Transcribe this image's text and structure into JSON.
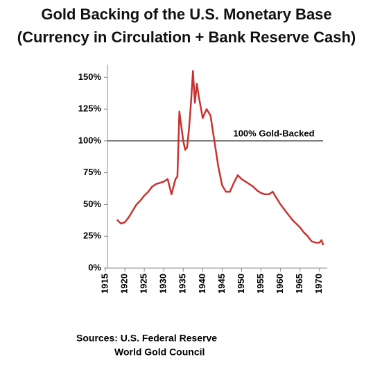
{
  "chart_data": {
    "type": "line",
    "title": [
      "Gold Backing of the U.S. Monetary Base",
      "(Currency in Circulation + Bank Reserve Cash)"
    ],
    "x": [
      1918,
      1919,
      1920,
      1921,
      1922,
      1923,
      1924,
      1925,
      1926,
      1927,
      1928,
      1929,
      1930,
      1931,
      1932,
      1933,
      1933.5,
      1934,
      1935,
      1935.5,
      1936,
      1936.5,
      1937,
      1937.5,
      1938,
      1938.5,
      1939,
      1940,
      1941,
      1942,
      1943,
      1944,
      1945,
      1946,
      1947,
      1948,
      1949,
      1950,
      1951,
      1952,
      1953,
      1954,
      1955,
      1956,
      1957,
      1958,
      1959,
      1960,
      1961,
      1962,
      1963,
      1964,
      1965,
      1966,
      1967,
      1968,
      1969,
      1970,
      1970.5,
      1971
    ],
    "values": [
      38,
      35,
      36,
      40,
      45,
      50,
      53,
      57,
      60,
      64,
      66,
      67,
      68,
      70,
      58,
      70,
      72,
      123,
      100,
      93,
      95,
      110,
      130,
      155,
      130,
      145,
      135,
      118,
      125,
      120,
      100,
      80,
      65,
      60,
      60,
      67,
      73,
      70,
      68,
      66,
      64,
      61,
      59,
      58,
      58,
      60,
      55,
      50,
      46,
      42,
      38,
      35,
      32,
      28,
      25,
      21,
      20,
      20,
      22,
      18
    ],
    "color": "#c8322f",
    "xlim": [
      1915,
      1972
    ],
    "xticks": [
      1915,
      1920,
      1925,
      1930,
      1935,
      1940,
      1945,
      1950,
      1955,
      1960,
      1965,
      1970
    ],
    "ylim": [
      0,
      160
    ],
    "yticks": [
      {
        "value": 0,
        "label": "0%"
      },
      {
        "value": 25,
        "label": "25%"
      },
      {
        "value": 50,
        "label": "50%"
      },
      {
        "value": 75,
        "label": "75%"
      },
      {
        "value": 100,
        "label": "100%"
      },
      {
        "value": 125,
        "label": "125%"
      },
      {
        "value": 150,
        "label": "150%"
      }
    ],
    "reference_line": {
      "value": 100,
      "label": "100% Gold-Backed"
    },
    "source": [
      "Sources: U.S. Federal Reserve",
      "World Gold Council"
    ]
  }
}
